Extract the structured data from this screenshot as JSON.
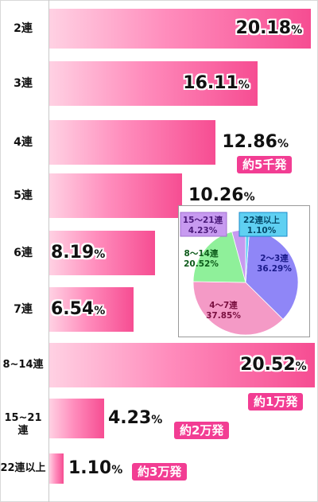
{
  "chart_data": [
    {
      "type": "bar",
      "orientation": "horizontal",
      "categories": [
        "2連",
        "3連",
        "4連",
        "5連",
        "6連",
        "7連",
        "8~14連",
        "15~21連",
        "22連以上"
      ],
      "values": [
        20.18,
        16.11,
        12.86,
        10.26,
        8.19,
        6.54,
        20.52,
        4.23,
        1.1
      ],
      "value_labels": [
        "20.18",
        "16.11",
        "12.86",
        "10.26",
        "8.19",
        "6.54",
        "20.52",
        "4.23",
        "1.10"
      ],
      "unit": "%",
      "xlim": [
        0,
        20.7
      ],
      "annotations": [
        {
          "category": "4連",
          "text": "約5千発"
        },
        {
          "category": "8~14連",
          "text": "約1万発"
        },
        {
          "category": "15~21連",
          "text": "約2万発"
        },
        {
          "category": "22連以上",
          "text": "約3万発"
        }
      ],
      "bar_color": "#f64d92",
      "annotation_color": "#f23d93"
    },
    {
      "type": "pie",
      "slices": [
        {
          "name": "2～3連",
          "value": 36.29,
          "label": "36.29%",
          "color": "#8f86f7",
          "label_color": "#1a1a8a"
        },
        {
          "name": "4～7連",
          "value": 37.85,
          "label": "37.85%",
          "color": "#f49ac6",
          "label_color": "#7a1040"
        },
        {
          "name": "8～14連",
          "value": 20.52,
          "label": "20.52%",
          "color": "#8ff09a",
          "label_color": "#0d5a1a"
        },
        {
          "name": "15～21連",
          "value": 4.23,
          "label": "4.23%",
          "color": "#c79af0",
          "label_color": "#4a1a7a"
        },
        {
          "name": "22連以上",
          "value": 1.1,
          "label": "1.10%",
          "color": "#5fd0f2",
          "label_color": "#064a6a"
        }
      ]
    }
  ]
}
